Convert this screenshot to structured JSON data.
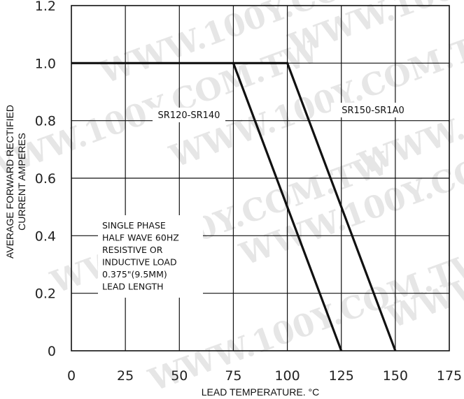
{
  "watermark": "WWW.100Y.COM.TW",
  "chart_data": {
    "type": "line",
    "xlabel": "LEAD TEMPERATURE. °C",
    "ylabel_lines": [
      "AVERAGE FORWARD RECTIFIED",
      "CURRENT AMPERES"
    ],
    "xlim": [
      0,
      175
    ],
    "ylim": [
      0,
      1.2
    ],
    "x_ticks": [
      0,
      25,
      50,
      75,
      100,
      125,
      150,
      175
    ],
    "x_tick_labels": [
      "0",
      "25",
      "50",
      "75",
      "100",
      "125",
      "150",
      "175"
    ],
    "y_ticks": [
      0,
      0.2,
      0.4,
      0.6,
      0.8,
      1.0,
      1.2
    ],
    "y_tick_labels": [
      "0",
      "0.2",
      "0.4",
      "0.6",
      "0.8",
      "1.0",
      "1.2"
    ],
    "grid": true,
    "series": [
      {
        "name": "SR120-SR140",
        "x": [
          0,
          75,
          125
        ],
        "y": [
          1.0,
          1.0,
          0
        ]
      },
      {
        "name": "SR150-SR1A0",
        "x": [
          75,
          100,
          150
        ],
        "y": [
          1.0,
          1.0,
          0
        ]
      }
    ],
    "annotations": [
      "SINGLE PHASE",
      "HALF WAVE  60HZ",
      "RESISTIVE OR",
      "INDUCTIVE LOAD",
      "0.375\"(9.5MM)",
      "LEAD LENGTH"
    ]
  }
}
